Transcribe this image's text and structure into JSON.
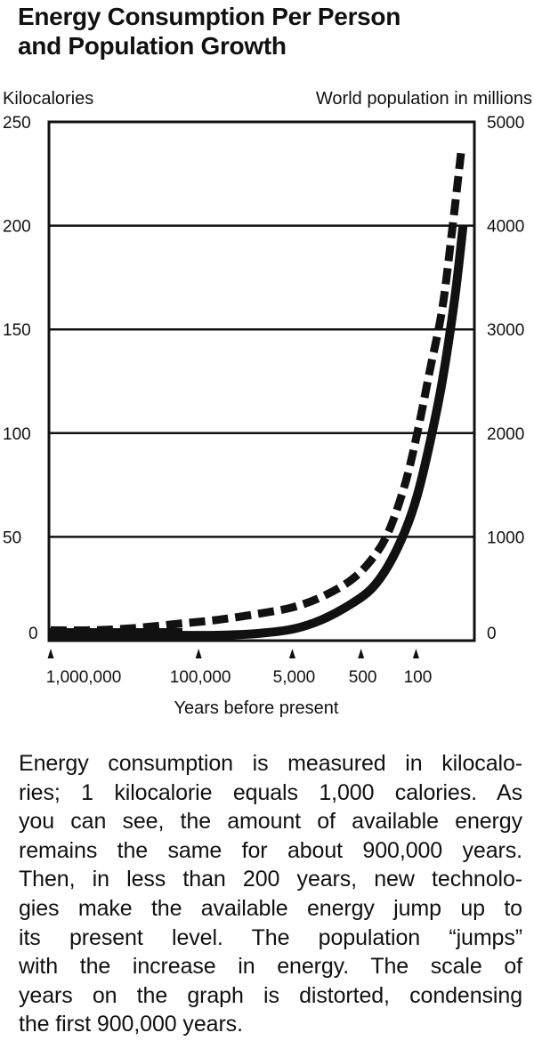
{
  "chart_data": {
    "type": "line",
    "title": "Energy Consumption Per Person and Population Growth",
    "ylabel": "Kilocalories",
    "y2label": "World population in millions",
    "xlabel": "Years before present",
    "ylim": [
      0,
      250
    ],
    "y2lim": [
      0,
      5000
    ],
    "yticks": [
      0,
      50,
      100,
      150,
      200,
      250
    ],
    "y2ticks": [
      0,
      1000,
      2000,
      3000,
      4000,
      5000
    ],
    "grid": true,
    "x_tick_labels": [
      "1,000,000",
      "100,000",
      "5,000",
      "500",
      "100"
    ],
    "x_tick_positions": [
      0.0,
      0.355,
      0.58,
      0.745,
      0.877
    ],
    "series": [
      {
        "name": "Energy consumption per person (kilocalories)",
        "style": "dashed",
        "axis": "left",
        "x": [
          0.0,
          0.1,
          0.2,
          0.3,
          0.4,
          0.5,
          0.58,
          0.65,
          0.72,
          0.77,
          0.81,
          0.85,
          0.88,
          0.91,
          0.94,
          0.965,
          0.985
        ],
        "y": [
          5,
          5,
          6,
          8,
          10,
          13,
          16,
          21,
          29,
          39,
          52,
          75,
          100,
          130,
          160,
          200,
          235
        ]
      },
      {
        "name": "World population (millions)",
        "style": "solid",
        "axis": "right",
        "x": [
          0.0,
          0.1,
          0.2,
          0.3,
          0.4,
          0.5,
          0.58,
          0.65,
          0.72,
          0.77,
          0.81,
          0.85,
          0.88,
          0.91,
          0.94,
          0.97,
          0.99
        ],
        "y": [
          10,
          10,
          15,
          25,
          40,
          70,
          110,
          200,
          350,
          500,
          720,
          1050,
          1400,
          1900,
          2500,
          3300,
          4000
        ]
      }
    ]
  },
  "caption": {
    "lines": [
      "Energy consumption is measured in kilocalo-",
      "ries; 1 kilocalorie equals 1,000 calories. As",
      "you can see, the amount of available energy",
      "remains the same for about 900,000 years.",
      "Then, in less than 200 years, new technolo-",
      "gies make the available energy jump up to",
      "its present level. The population “jumps”",
      "with the increase in energy. The scale of",
      "years on the graph is distorted, condensing",
      "the first 900,000 years."
    ]
  }
}
